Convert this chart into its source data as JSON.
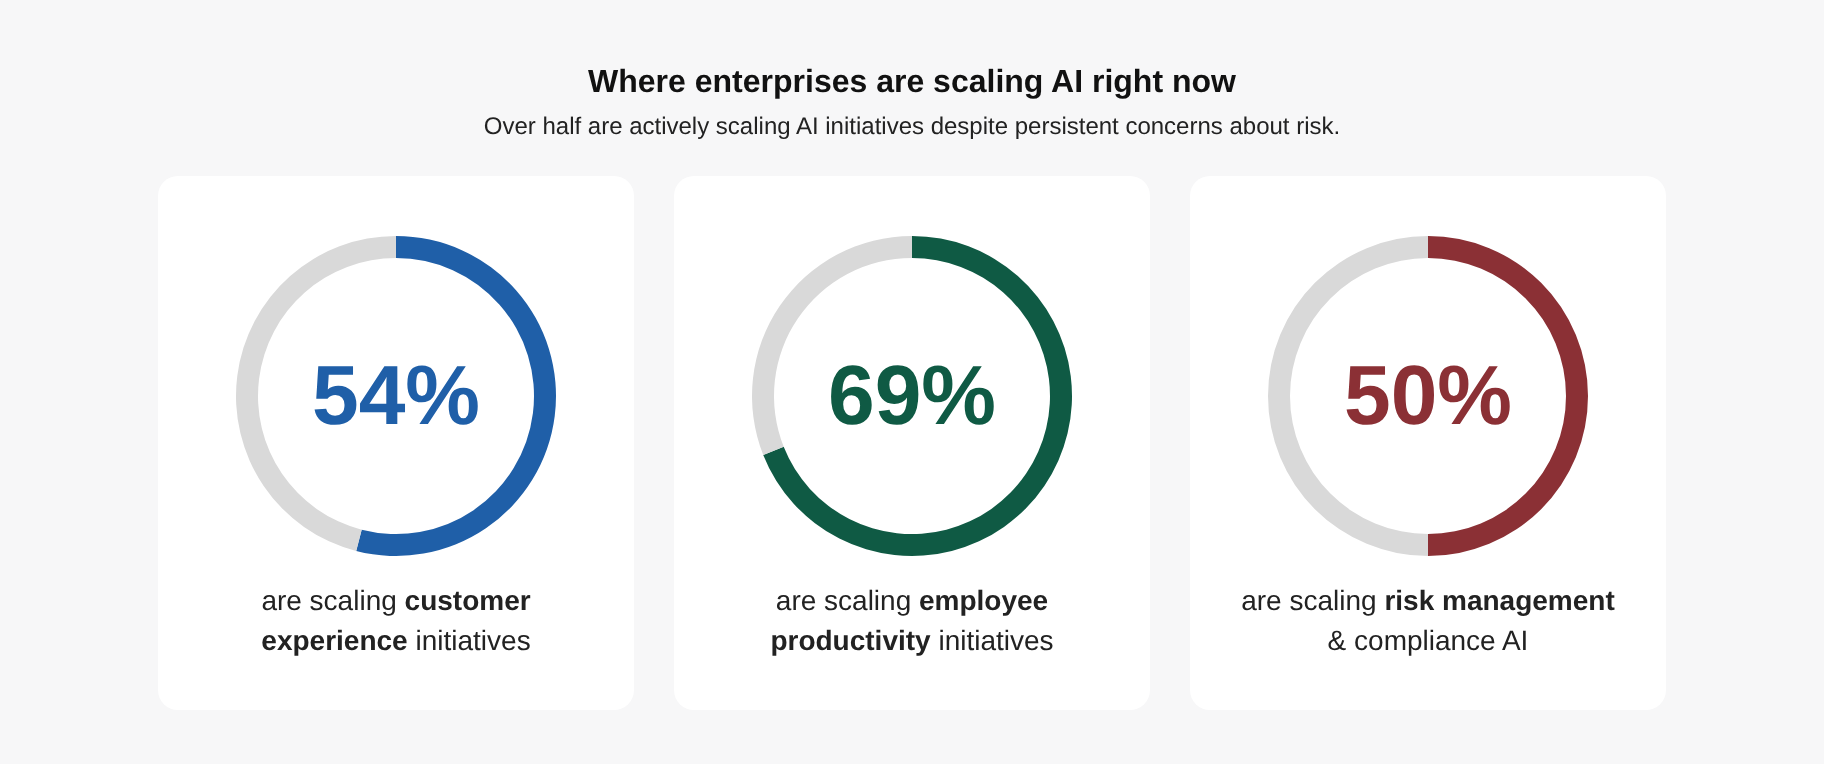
{
  "chart_data": [
    {
      "type": "other",
      "title": "Where enterprises are scaling AI right now",
      "subtitle": "Over half are actively scaling AI initiatives despite persistent concerns about risk."
    },
    {
      "type": "donut",
      "categories": [
        null,
        null
      ],
      "values": [
        54,
        46
      ],
      "colors": [
        "#1f5fa8",
        "#d9d9d9"
      ],
      "value_labels": [
        "54%",
        null
      ],
      "annotations": [
        "are scaling",
        "customer experience",
        "initiatives"
      ]
    },
    {
      "type": "donut",
      "categories": [
        null,
        null
      ],
      "values": [
        69,
        31
      ],
      "colors": [
        "#0f5a44",
        "#d9d9d9"
      ],
      "value_labels": [
        "69%",
        null
      ],
      "annotations": [
        "are scaling",
        "employee productivity",
        "initiatives"
      ]
    },
    {
      "type": "donut",
      "categories": [
        null,
        null
      ],
      "values": [
        50,
        50
      ],
      "colors": [
        "#8b3035",
        "#d9d9d9"
      ],
      "value_labels": [
        "50%",
        null
      ],
      "annotations": [
        "are scaling",
        "risk management",
        "& compliance AI"
      ]
    }
  ]
}
